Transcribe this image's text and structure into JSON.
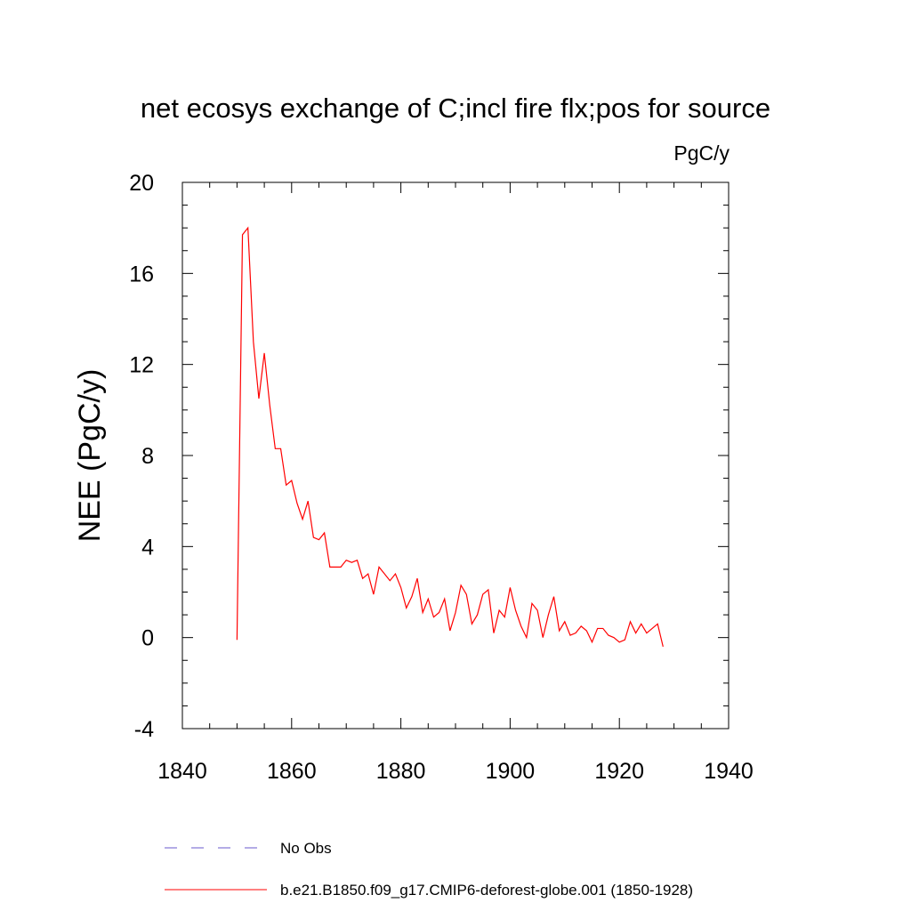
{
  "chart_data": {
    "type": "line",
    "title": "net ecosys exchange of C;incl fire flx;pos for source",
    "units_label": "PgC/y",
    "xlabel": "",
    "ylabel": "NEE  (PgC/y)",
    "xlim": [
      1840,
      1940
    ],
    "ylim": [
      -4,
      20
    ],
    "x_ticks": [
      1840,
      1860,
      1880,
      1900,
      1920,
      1940
    ],
    "y_ticks": [
      -4,
      0,
      4,
      8,
      12,
      16,
      20
    ],
    "x_tick_labels": [
      "1840",
      "1860",
      "1880",
      "1900",
      "1920",
      "1940"
    ],
    "y_tick_labels": [
      "-4",
      "0",
      "4",
      "8",
      "12",
      "16",
      "20"
    ],
    "grid": false,
    "series": [
      {
        "name": "b.e21.B1850.f09_g17.CMIP6-deforest-globe.001 (1850-1928)",
        "color": "#ff0000",
        "style": "solid",
        "x": [
          1850,
          1851,
          1852,
          1853,
          1854,
          1855,
          1856,
          1857,
          1858,
          1859,
          1860,
          1861,
          1862,
          1863,
          1864,
          1865,
          1866,
          1867,
          1868,
          1869,
          1870,
          1871,
          1872,
          1873,
          1874,
          1875,
          1876,
          1877,
          1878,
          1879,
          1880,
          1881,
          1882,
          1883,
          1884,
          1885,
          1886,
          1887,
          1888,
          1889,
          1890,
          1891,
          1892,
          1893,
          1894,
          1895,
          1896,
          1897,
          1898,
          1899,
          1900,
          1901,
          1902,
          1903,
          1904,
          1905,
          1906,
          1907,
          1908,
          1909,
          1910,
          1911,
          1912,
          1913,
          1914,
          1915,
          1916,
          1917,
          1918,
          1919,
          1920,
          1921,
          1922,
          1923,
          1924,
          1925,
          1926,
          1927,
          1928
        ],
        "values": [
          -0.1,
          17.7,
          18.0,
          13.0,
          10.5,
          12.5,
          10.2,
          8.3,
          8.3,
          6.7,
          6.9,
          5.9,
          5.2,
          6.0,
          4.4,
          4.3,
          4.6,
          3.1,
          3.1,
          3.1,
          3.4,
          3.3,
          3.4,
          2.6,
          2.8,
          1.9,
          3.1,
          2.8,
          2.5,
          2.8,
          2.2,
          1.3,
          1.8,
          2.6,
          1.1,
          1.7,
          0.9,
          1.1,
          1.7,
          0.3,
          1.1,
          2.3,
          1.9,
          0.6,
          1.0,
          1.9,
          2.1,
          0.2,
          1.2,
          0.9,
          2.2,
          1.2,
          0.5,
          0.0,
          1.5,
          1.2,
          0.0,
          1.0,
          1.8,
          0.3,
          0.7,
          0.1,
          0.2,
          0.5,
          0.3,
          -0.2,
          0.4,
          0.4,
          0.1,
          0.0,
          -0.2,
          -0.1,
          0.7,
          0.2,
          0.6,
          0.2,
          0.4,
          0.6,
          -0.4
        ]
      },
      {
        "name": "No Obs",
        "color": "#6a5acd",
        "style": "dashed",
        "x": [],
        "values": []
      }
    ],
    "legend_position": "bottom-left"
  }
}
